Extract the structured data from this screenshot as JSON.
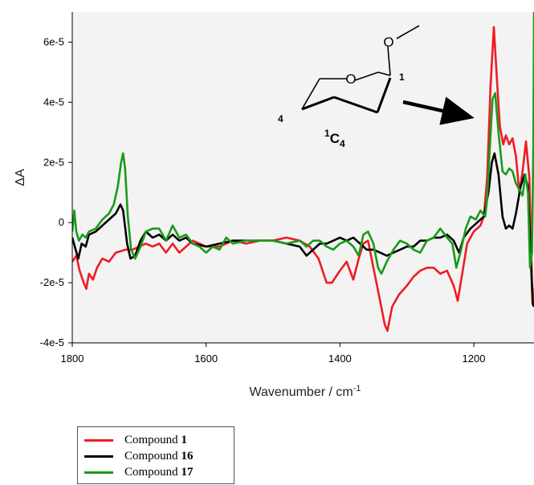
{
  "chart_data": {
    "type": "line",
    "title": "",
    "xlabel": "Wavenumber / cm",
    "xlabel_superscript": "-1",
    "ylabel": "ΔA",
    "xlim": [
      1800,
      1110
    ],
    "ylim": [
      -4e-05,
      7e-05
    ],
    "x_ticks": [
      1800,
      1600,
      1400,
      1200
    ],
    "y_ticks": [
      {
        "value": -4e-05,
        "label": "-4e-5"
      },
      {
        "value": -2e-05,
        "label": "-2e-5"
      },
      {
        "value": 0,
        "label": "0"
      },
      {
        "value": 2e-05,
        "label": "2e-5"
      },
      {
        "value": 4e-05,
        "label": "4e-5"
      },
      {
        "value": 6e-05,
        "label": "6e-5"
      }
    ],
    "grid": false,
    "legend_position": "bottom-left",
    "inset": {
      "label_oxygen_ring": "O",
      "label_oxygen_sub": "O",
      "label_c1": "1",
      "label_c4": "4",
      "conformation_main": "C",
      "conformation_sup": "1",
      "conformation_sub": "4"
    },
    "series": [
      {
        "name_prefix": "Compound ",
        "name_number": "1",
        "color": "#ee1c24",
        "points": [
          [
            1800,
            -1.3e-05
          ],
          [
            1794,
            -1.1e-05
          ],
          [
            1789,
            -1.6e-05
          ],
          [
            1783,
            -2e-05
          ],
          [
            1779,
            -2.2e-05
          ],
          [
            1775,
            -1.7e-05
          ],
          [
            1769,
            -1.9e-05
          ],
          [
            1763,
            -1.5e-05
          ],
          [
            1755,
            -1.2e-05
          ],
          [
            1745,
            -1.3e-05
          ],
          [
            1735,
            -1e-05
          ],
          [
            1720,
            -9e-06
          ],
          [
            1710,
            -9e-06
          ],
          [
            1700,
            -8e-06
          ],
          [
            1690,
            -7e-06
          ],
          [
            1680,
            -8e-06
          ],
          [
            1670,
            -7e-06
          ],
          [
            1660,
            -1e-05
          ],
          [
            1650,
            -7e-06
          ],
          [
            1640,
            -1e-05
          ],
          [
            1630,
            -8e-06
          ],
          [
            1620,
            -6e-06
          ],
          [
            1600,
            -8e-06
          ],
          [
            1580,
            -8e-06
          ],
          [
            1560,
            -6e-06
          ],
          [
            1540,
            -7e-06
          ],
          [
            1520,
            -6e-06
          ],
          [
            1500,
            -6e-06
          ],
          [
            1480,
            -5e-06
          ],
          [
            1460,
            -6e-06
          ],
          [
            1445,
            -8e-06
          ],
          [
            1432,
            -1.2e-05
          ],
          [
            1420,
            -2e-05
          ],
          [
            1412,
            -2e-05
          ],
          [
            1400,
            -1.6e-05
          ],
          [
            1390,
            -1.3e-05
          ],
          [
            1380,
            -1.9e-05
          ],
          [
            1372,
            -1.2e-05
          ],
          [
            1365,
            -7e-06
          ],
          [
            1358,
            -6e-06
          ],
          [
            1350,
            -1.5e-05
          ],
          [
            1340,
            -2.6e-05
          ],
          [
            1333,
            -3.4e-05
          ],
          [
            1329,
            -3.6e-05
          ],
          [
            1322,
            -2.8e-05
          ],
          [
            1312,
            -2.4e-05
          ],
          [
            1300,
            -2.1e-05
          ],
          [
            1290,
            -1.8e-05
          ],
          [
            1280,
            -1.6e-05
          ],
          [
            1270,
            -1.5e-05
          ],
          [
            1260,
            -1.5e-05
          ],
          [
            1250,
            -1.7e-05
          ],
          [
            1240,
            -1.6e-05
          ],
          [
            1230,
            -2.1e-05
          ],
          [
            1224,
            -2.6e-05
          ],
          [
            1218,
            -1.8e-05
          ],
          [
            1210,
            -7e-06
          ],
          [
            1200,
            -3e-06
          ],
          [
            1190,
            -1e-06
          ],
          [
            1185,
            2e-06
          ],
          [
            1180,
            1.5e-05
          ],
          [
            1175,
            4.5e-05
          ],
          [
            1170,
            6.5e-05
          ],
          [
            1166,
            5e-05
          ],
          [
            1161,
            3.2e-05
          ],
          [
            1156,
            2.6e-05
          ],
          [
            1152,
            2.9e-05
          ],
          [
            1147,
            2.6e-05
          ],
          [
            1142,
            2.8e-05
          ],
          [
            1137,
            2.2e-05
          ],
          [
            1132,
            1e-05
          ],
          [
            1127,
            1.7e-05
          ],
          [
            1122,
            2.7e-05
          ],
          [
            1117,
            1.5e-05
          ],
          [
            1113,
            -2e-05
          ],
          [
            1110,
            -2.7e-05
          ]
        ]
      },
      {
        "name_prefix": "Compound ",
        "name_number": "16",
        "color": "#000000",
        "points": [
          [
            1800,
            -5e-06
          ],
          [
            1795,
            -9e-06
          ],
          [
            1791,
            -1.2e-05
          ],
          [
            1786,
            -7e-06
          ],
          [
            1780,
            -8e-06
          ],
          [
            1775,
            -4e-06
          ],
          [
            1765,
            -3e-06
          ],
          [
            1755,
            -1e-06
          ],
          [
            1745,
            1e-06
          ],
          [
            1735,
            3e-06
          ],
          [
            1728,
            6e-06
          ],
          [
            1724,
            4e-06
          ],
          [
            1718,
            -7e-06
          ],
          [
            1713,
            -1.2e-05
          ],
          [
            1706,
            -1.1e-05
          ],
          [
            1698,
            -6e-06
          ],
          [
            1690,
            -3e-06
          ],
          [
            1680,
            -5e-06
          ],
          [
            1670,
            -4e-06
          ],
          [
            1660,
            -6e-06
          ],
          [
            1650,
            -4e-06
          ],
          [
            1640,
            -6e-06
          ],
          [
            1630,
            -5e-06
          ],
          [
            1620,
            -7e-06
          ],
          [
            1600,
            -8e-06
          ],
          [
            1580,
            -7e-06
          ],
          [
            1560,
            -6e-06
          ],
          [
            1540,
            -6e-06
          ],
          [
            1520,
            -6e-06
          ],
          [
            1500,
            -6e-06
          ],
          [
            1480,
            -7e-06
          ],
          [
            1460,
            -8e-06
          ],
          [
            1450,
            -1.1e-05
          ],
          [
            1440,
            -9e-06
          ],
          [
            1430,
            -7e-06
          ],
          [
            1420,
            -7e-06
          ],
          [
            1410,
            -6e-06
          ],
          [
            1400,
            -5e-06
          ],
          [
            1390,
            -6e-06
          ],
          [
            1380,
            -5e-06
          ],
          [
            1370,
            -7e-06
          ],
          [
            1360,
            -9e-06
          ],
          [
            1350,
            -9e-06
          ],
          [
            1340,
            -1e-05
          ],
          [
            1330,
            -1.1e-05
          ],
          [
            1320,
            -1e-05
          ],
          [
            1310,
            -9e-06
          ],
          [
            1300,
            -8e-06
          ],
          [
            1290,
            -8e-06
          ],
          [
            1280,
            -6e-06
          ],
          [
            1270,
            -6e-06
          ],
          [
            1260,
            -5e-06
          ],
          [
            1250,
            -5e-06
          ],
          [
            1240,
            -4e-06
          ],
          [
            1230,
            -6e-06
          ],
          [
            1222,
            -1e-05
          ],
          [
            1215,
            -5e-06
          ],
          [
            1205,
            -2e-06
          ],
          [
            1195,
            0.0
          ],
          [
            1185,
            2e-06
          ],
          [
            1178,
            1e-05
          ],
          [
            1173,
            2e-05
          ],
          [
            1169,
            2.3e-05
          ],
          [
            1163,
            1.6e-05
          ],
          [
            1157,
            2e-06
          ],
          [
            1152,
            -2e-06
          ],
          [
            1147,
            -1e-06
          ],
          [
            1142,
            -2e-06
          ],
          [
            1137,
            3e-06
          ],
          [
            1130,
            1.2e-05
          ],
          [
            1124,
            1.6e-05
          ],
          [
            1119,
            1.2e-05
          ],
          [
            1115,
            -1e-05
          ],
          [
            1112,
            -2.7e-05
          ],
          [
            1110,
            -2.8e-05
          ]
        ]
      },
      {
        "name_prefix": "Compound ",
        "name_number": "17",
        "color": "#1a9a1a",
        "points": [
          [
            1800,
            -3e-06
          ],
          [
            1797,
            4e-06
          ],
          [
            1794,
            -3e-06
          ],
          [
            1790,
            -6e-06
          ],
          [
            1785,
            -4e-06
          ],
          [
            1780,
            -5e-06
          ],
          [
            1775,
            -3e-06
          ],
          [
            1765,
            -2e-06
          ],
          [
            1755,
            1e-06
          ],
          [
            1745,
            3e-06
          ],
          [
            1738,
            6e-06
          ],
          [
            1732,
            1.2e-05
          ],
          [
            1727,
            2e-05
          ],
          [
            1724,
            2.3e-05
          ],
          [
            1721,
            1.8e-05
          ],
          [
            1717,
            2e-06
          ],
          [
            1712,
            -9e-06
          ],
          [
            1706,
            -1.2e-05
          ],
          [
            1698,
            -8e-06
          ],
          [
            1690,
            -3e-06
          ],
          [
            1680,
            -2e-06
          ],
          [
            1670,
            -2e-06
          ],
          [
            1660,
            -6e-06
          ],
          [
            1650,
            -1e-06
          ],
          [
            1640,
            -5e-06
          ],
          [
            1630,
            -4e-06
          ],
          [
            1620,
            -7e-06
          ],
          [
            1610,
            -8e-06
          ],
          [
            1600,
            -1e-05
          ],
          [
            1590,
            -8e-06
          ],
          [
            1580,
            -9e-06
          ],
          [
            1570,
            -5e-06
          ],
          [
            1560,
            -7e-06
          ],
          [
            1540,
            -6e-06
          ],
          [
            1520,
            -6e-06
          ],
          [
            1500,
            -6e-06
          ],
          [
            1480,
            -7e-06
          ],
          [
            1460,
            -6e-06
          ],
          [
            1450,
            -8e-06
          ],
          [
            1440,
            -6e-06
          ],
          [
            1430,
            -6e-06
          ],
          [
            1420,
            -8e-06
          ],
          [
            1410,
            -9e-06
          ],
          [
            1400,
            -7e-06
          ],
          [
            1390,
            -6e-06
          ],
          [
            1380,
            -8e-06
          ],
          [
            1372,
            -1.1e-05
          ],
          [
            1365,
            -4e-06
          ],
          [
            1358,
            -3e-06
          ],
          [
            1350,
            -7e-06
          ],
          [
            1343,
            -1.5e-05
          ],
          [
            1338,
            -1.7e-05
          ],
          [
            1330,
            -1.3e-05
          ],
          [
            1320,
            -9e-06
          ],
          [
            1310,
            -6e-06
          ],
          [
            1300,
            -7e-06
          ],
          [
            1290,
            -9e-06
          ],
          [
            1280,
            -1e-05
          ],
          [
            1270,
            -6e-06
          ],
          [
            1260,
            -5e-06
          ],
          [
            1250,
            -2e-06
          ],
          [
            1240,
            -5e-06
          ],
          [
            1232,
            -7e-06
          ],
          [
            1226,
            -1.5e-05
          ],
          [
            1220,
            -1e-05
          ],
          [
            1212,
            -2e-06
          ],
          [
            1205,
            2e-06
          ],
          [
            1197,
            1e-06
          ],
          [
            1190,
            4e-06
          ],
          [
            1183,
            2e-06
          ],
          [
            1180,
            8e-06
          ],
          [
            1176,
            2.5e-05
          ],
          [
            1172,
            4.1e-05
          ],
          [
            1168,
            4.3e-05
          ],
          [
            1163,
            3e-05
          ],
          [
            1157,
            1.7e-05
          ],
          [
            1152,
            1.6e-05
          ],
          [
            1147,
            1.8e-05
          ],
          [
            1142,
            1.7e-05
          ],
          [
            1137,
            1.3e-05
          ],
          [
            1132,
            1.1e-05
          ],
          [
            1127,
            9e-06
          ],
          [
            1123,
            1.6e-05
          ],
          [
            1119,
            1e-05
          ],
          [
            1116,
            -1.5e-05
          ],
          [
            1113,
            -1e-05
          ],
          [
            1111,
            2.5e-05
          ],
          [
            1110,
            7e-05
          ]
        ]
      }
    ]
  }
}
